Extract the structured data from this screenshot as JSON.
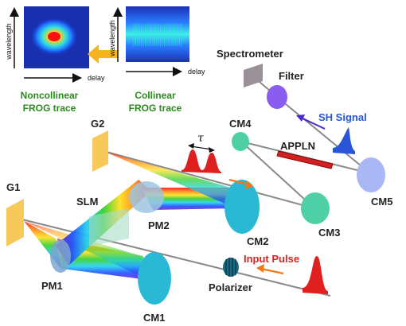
{
  "colors": {
    "grating": "#f7c85a",
    "mirror_cyan": "#29b9d4",
    "mirror_teal": "#4fcfa6",
    "mirror_blue": "#a9b8f5",
    "filter_purple": "#8a5cf0",
    "pulse_red": "#e0201e",
    "arrow_orange": "#f07a1a",
    "arrow_yellow": "#f6b41e",
    "sh_blue": "#2a55d9",
    "label_green": "#2a8a1e",
    "label_red": "#e0201e",
    "label_blue": "#2a55d9",
    "crystal": "#d42020"
  },
  "frog": {
    "noncollinear": {
      "title_line1": "Noncollinear",
      "title_line2": "FROG trace",
      "y_axis_label": "wavelength",
      "x_axis_label": "delay"
    },
    "collinear": {
      "title_line1": "Collinear",
      "title_line2": "FROG trace",
      "y_axis_label": "wavelength",
      "x_axis_label": "delay"
    }
  },
  "labels": {
    "g1": "G1",
    "g2": "G2",
    "slm": "SLM",
    "pm1": "PM1",
    "pm2": "PM2",
    "cm1": "CM1",
    "cm2": "CM2",
    "cm3": "CM3",
    "cm4": "CM4",
    "cm5": "CM5",
    "appln": "APPLN",
    "spectrometer": "Spectrometer",
    "filter": "Filter",
    "polarizer": "Polarizer",
    "input_pulse": "Input Pulse",
    "sh_signal": "SH Signal",
    "tau": "τ"
  }
}
